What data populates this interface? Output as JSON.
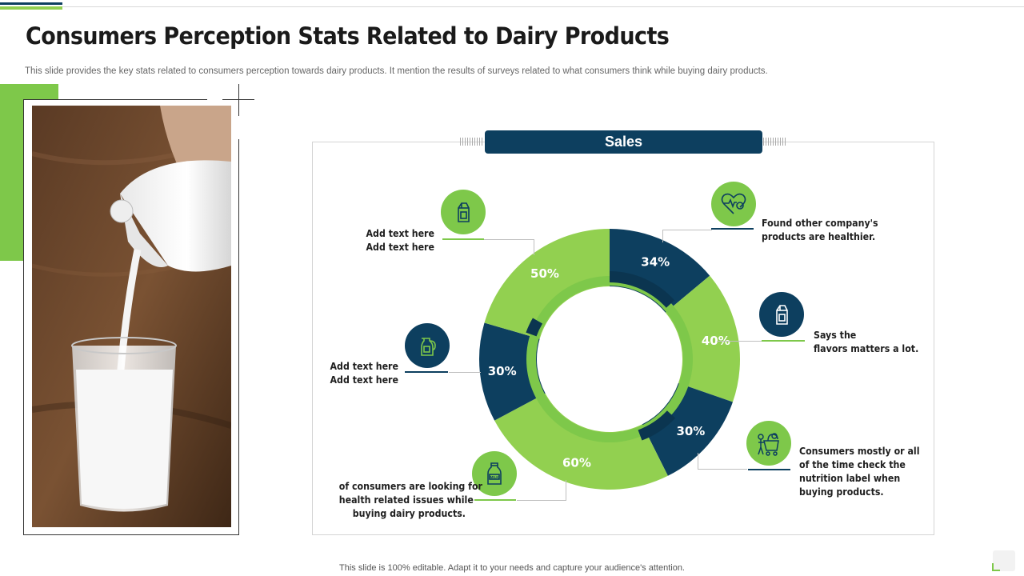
{
  "slide": {
    "title": "Consumers Perception Stats Related to Dairy Products",
    "subtitle": "This slide provides the key stats related to consumers perception towards dairy products. It mention the results of surveys related to what consumers think while buying dairy products.",
    "footer": "This slide is 100% editable. Adapt it to your needs and capture your audience's attention."
  },
  "chart": {
    "header": "Sales",
    "colors": {
      "green": "#92d050",
      "navy": "#0d3f5f",
      "inner_green": "#7ec84a"
    }
  },
  "chart_data": {
    "type": "pie",
    "title": "Sales",
    "segments": [
      {
        "label": "34%",
        "value": 34,
        "color": "#0d3f5f"
      },
      {
        "label": "40%",
        "value": 40,
        "color": "#92d050"
      },
      {
        "label": "30%",
        "value": 30,
        "color": "#0d3f5f"
      },
      {
        "label": "60%",
        "value": 60,
        "color": "#92d050"
      },
      {
        "label": "30%",
        "value": 30,
        "color": "#0d3f5f"
      },
      {
        "label": "50%",
        "value": 50,
        "color": "#92d050"
      }
    ]
  },
  "callouts": {
    "top_left": {
      "icon": "milk-carton-icon",
      "text": "Add text here\nAdd text here"
    },
    "mid_left": {
      "icon": "milk-jug-icon",
      "text": "Add text here\nAdd text here"
    },
    "bottom_left": {
      "icon": "milk-bottle-icon",
      "text": "of consumers are looking for\nhealth related issues while\nbuying dairy products."
    },
    "top_right": {
      "icon": "heart-pulse-icon",
      "text": "Found other company's\nproducts are healthier."
    },
    "mid_right": {
      "icon": "milk-carton-icon",
      "text": "Says the\nflavors matters a lot."
    },
    "bottom_right": {
      "icon": "shopping-cart-person-icon",
      "text": "Consumers mostly or all\nof the time check the\nnutrition label when\nbuying products."
    }
  }
}
